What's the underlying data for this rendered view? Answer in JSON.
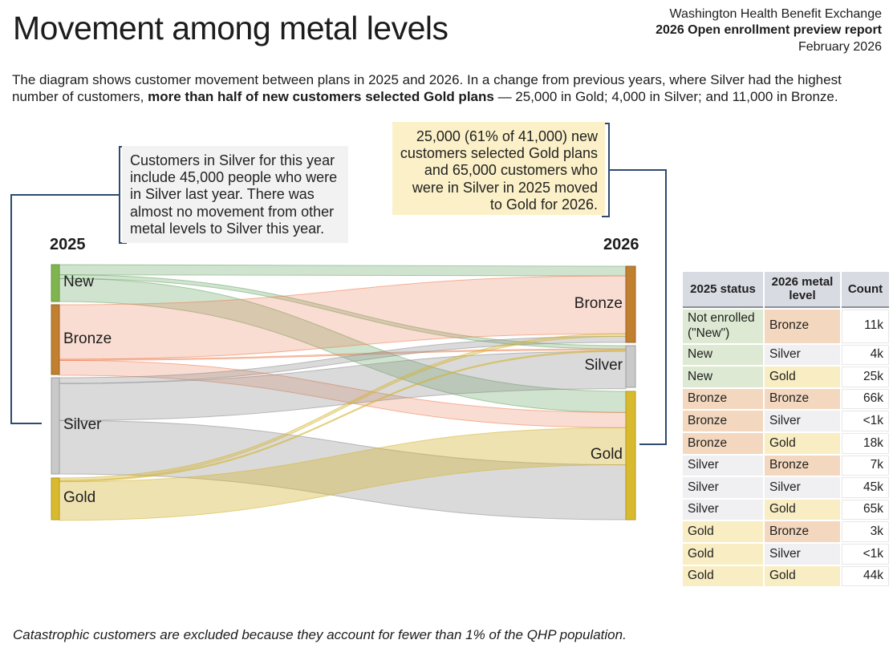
{
  "header": {
    "title": "Movement among metal levels",
    "org": "Washington Health Benefit Exchange",
    "report": "2026 Open enrollment preview report",
    "date": "February 2026"
  },
  "intro": {
    "text_before": "The diagram shows customer movement between plans in 2025 and 2026. In a change from previous years, where Silver had the highest number of customers, ",
    "text_bold": "more than half of new customers selected Gold plans",
    "text_after": " — 25,000 in Gold; 4,000 in Silver; and 11,000 in Bronze."
  },
  "callouts": {
    "silver": {
      "text": "Customers in Silver for this year include 45,000 people who were in Silver last year. There was almost no movement from other metal levels to Silver this year."
    },
    "gold": {
      "text": "25,000 (61% of 41,000) new customers selected Gold plans and 65,000 customers who were in Silver in 2025 moved to Gold for 2026."
    }
  },
  "chart_data": {
    "type": "sankey",
    "left_label": "2025",
    "right_label": "2026",
    "nodes_2025": [
      "New",
      "Bronze",
      "Silver",
      "Gold"
    ],
    "nodes_2026": [
      "Bronze",
      "Silver",
      "Gold"
    ],
    "units": "thousands of customers",
    "flows": [
      {
        "source": "New",
        "target": "Bronze",
        "value_k": 11,
        "label": "11k"
      },
      {
        "source": "New",
        "target": "Silver",
        "value_k": 4,
        "label": "4k"
      },
      {
        "source": "New",
        "target": "Gold",
        "value_k": 25,
        "label": "25k"
      },
      {
        "source": "Bronze",
        "target": "Bronze",
        "value_k": 66,
        "label": "66k"
      },
      {
        "source": "Bronze",
        "target": "Silver",
        "value_k": 0.5,
        "label": "<1k"
      },
      {
        "source": "Bronze",
        "target": "Gold",
        "value_k": 18,
        "label": "18k"
      },
      {
        "source": "Silver",
        "target": "Bronze",
        "value_k": 7,
        "label": "7k"
      },
      {
        "source": "Silver",
        "target": "Silver",
        "value_k": 45,
        "label": "45k"
      },
      {
        "source": "Silver",
        "target": "Gold",
        "value_k": 65,
        "label": "65k"
      },
      {
        "source": "Gold",
        "target": "Bronze",
        "value_k": 3,
        "label": "3k"
      },
      {
        "source": "Gold",
        "target": "Silver",
        "value_k": 0.5,
        "label": "<1k"
      },
      {
        "source": "Gold",
        "target": "Gold",
        "value_k": 44,
        "label": "44k"
      }
    ],
    "colors": {
      "node": {
        "New": "#7fb44e",
        "Bronze": "#c17f30",
        "Silver": "#c9c9c9",
        "Gold": "#d9ba2f"
      },
      "flow": {
        "New": "#6ea869",
        "Bronze": "#ec7d50",
        "Silver": "#8c8c8c",
        "Gold": "#d4b432"
      }
    }
  },
  "colors": {
    "accent_navy": "#2e4a6e",
    "callout_gray_bg": "#f2f2f2",
    "callout_yellow_bg": "#fbf0c7",
    "table_header_bg": "#d9dbe3"
  },
  "table": {
    "headers": [
      "2025 status",
      "2026 metal level",
      "Count"
    ],
    "rows": [
      [
        "Not enrolled (\"New\")",
        "Bronze",
        "11k"
      ],
      [
        "New",
        "Silver",
        "4k"
      ],
      [
        "New",
        "Gold",
        "25k"
      ],
      [
        "Bronze",
        "Bronze",
        "66k"
      ],
      [
        "Bronze",
        "Silver",
        "<1k"
      ],
      [
        "Bronze",
        "Gold",
        "18k"
      ],
      [
        "Silver",
        "Bronze",
        "7k"
      ],
      [
        "Silver",
        "Silver",
        "45k"
      ],
      [
        "Silver",
        "Gold",
        "65k"
      ],
      [
        "Gold",
        "Bronze",
        "3k"
      ],
      [
        "Gold",
        "Silver",
        "<1k"
      ],
      [
        "Gold",
        "Gold",
        "44k"
      ]
    ]
  },
  "footnote": "Catastrophic customers are excluded because they account for fewer than 1% of the QHP population."
}
